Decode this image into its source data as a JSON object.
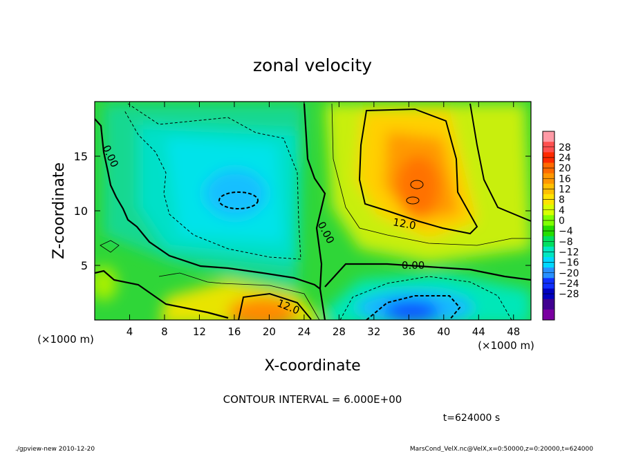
{
  "chart_data": {
    "type": "heatmap",
    "title": "zonal velocity",
    "xlabel": "X-coordinate",
    "ylabel": "Z-coordinate",
    "x_unit": "(×1000 m)",
    "y_unit": "(×1000 m)",
    "xlim": [
      0,
      50
    ],
    "ylim": [
      0,
      20
    ],
    "x_ticks": [
      4,
      8,
      12,
      16,
      20,
      24,
      28,
      32,
      36,
      40,
      44,
      48
    ],
    "y_ticks": [
      5,
      10,
      15
    ],
    "colorbar": {
      "labels": [
        "28",
        "24",
        "20",
        "16",
        "12",
        "8",
        "4",
        "0",
        "-4",
        "-8",
        "-12",
        "-16",
        "-20",
        "-24",
        "-28"
      ],
      "levels": [
        32,
        28,
        24,
        20,
        16,
        12,
        8,
        4,
        0,
        -4,
        -8,
        -12,
        -16,
        -20,
        -24,
        -28,
        -32
      ],
      "colors": [
        "#ff9aa6",
        "#ff5050",
        "#ff2a00",
        "#ff6a00",
        "#ff9600",
        "#ffbf00",
        "#ffe400",
        "#d8ff00",
        "#7fff00",
        "#24dd00",
        "#00e060",
        "#00e7c0",
        "#00d8ff",
        "#2890ff",
        "#1030ff",
        "#0000c0",
        "#400090",
        "#7a00a0"
      ]
    },
    "features": [
      {
        "kind": "max",
        "x": 36,
        "z": 12,
        "value": 18
      },
      {
        "kind": "max",
        "x": 20,
        "z": 1,
        "value": 18
      },
      {
        "kind": "min",
        "x": 38,
        "z": 1.5,
        "value": -18
      },
      {
        "kind": "min",
        "x": 16,
        "z": 11,
        "value": -12
      }
    ],
    "contour_labels": [
      {
        "text": "0.00",
        "x": 1.8,
        "z": 15,
        "angle": 65
      },
      {
        "text": "0.00",
        "x": 26.5,
        "z": 8,
        "angle": 62
      },
      {
        "text": "0.00",
        "x": 36.5,
        "z": 5,
        "angle": 0
      },
      {
        "text": "12.0",
        "x": 35.5,
        "z": 8.8,
        "angle": 10
      },
      {
        "text": "12.0",
        "x": 22.2,
        "z": 1.2,
        "angle": 22
      }
    ],
    "contour_interval": "CONTOUR INTERVAL = 6.000E+00",
    "time": "t=624000 s"
  },
  "footer": {
    "left": "./gpview-new  2010-12-20",
    "right": "MarsCond_VelX.nc@VelX,x=0:50000,z=0:20000,t=624000"
  }
}
